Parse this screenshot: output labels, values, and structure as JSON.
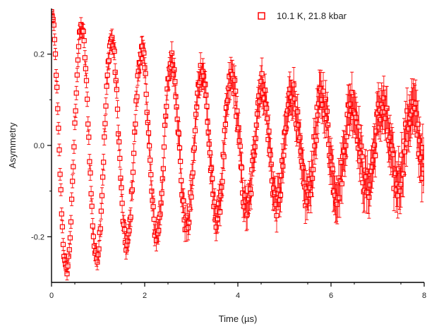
{
  "chart_data": {
    "type": "scatter",
    "title": "",
    "xlabel": "Time (µs)",
    "ylabel": "Asymmetry",
    "xlim": [
      0,
      8
    ],
    "ylim": [
      -0.3,
      0.3
    ],
    "xticks": [
      0,
      2,
      4,
      6,
      8
    ],
    "xtick_labels": [
      "0",
      "2",
      "4",
      "6",
      "8"
    ],
    "yticks": [
      -0.2,
      0.0,
      0.2
    ],
    "ytick_labels": [
      "-0.2",
      "0.0",
      "0.2"
    ],
    "grid": false,
    "legend_position": "top-right",
    "series": [
      {
        "name": "10.1 K, 21.8 kbar",
        "color": "#ff0000",
        "marker": "open-square",
        "error_bars": true,
        "model": {
          "amplitude": 0.29,
          "damping_rate_per_us": 0.17,
          "frequency_mhz": 1.55,
          "points_per_us": 60,
          "error_start": 0.012,
          "error_growth_per_us": 0.005
        }
      }
    ]
  }
}
